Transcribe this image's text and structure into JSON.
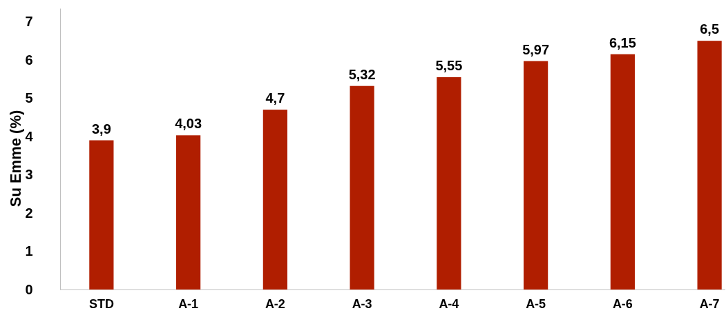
{
  "chart_data": {
    "type": "bar",
    "ylabel": "Su Emme (%)",
    "categories": [
      "STD",
      "A-1",
      "A-2",
      "A-3",
      "A-4",
      "A-5",
      "A-6",
      "A-7"
    ],
    "values": [
      3.9,
      4.03,
      4.7,
      5.32,
      5.55,
      5.97,
      6.15,
      6.5
    ],
    "value_labels": [
      "3,9",
      "4,03",
      "4,7",
      "5,32",
      "5,55",
      "5,97",
      "6,15",
      "6,5"
    ],
    "color": "#b01e00",
    "ylim": [
      0,
      7.35
    ],
    "yticks": [
      0,
      1,
      2,
      3,
      4,
      5,
      6,
      7
    ],
    "grid": false
  }
}
